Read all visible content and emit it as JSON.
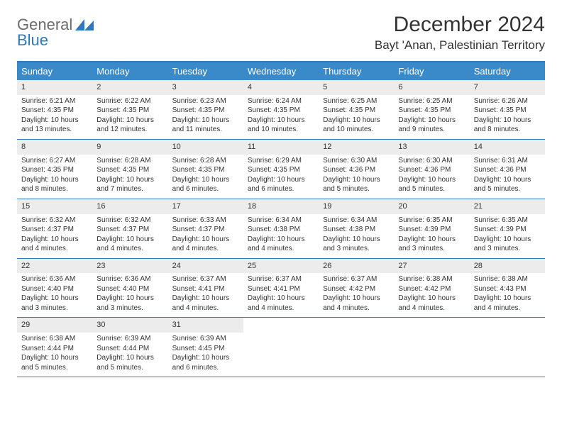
{
  "logo": {
    "part1": "General",
    "part2": "Blue"
  },
  "title": "December 2024",
  "location": "Bayt 'Anan, Palestinian Territory",
  "colors": {
    "header_bg": "#3a8ac9",
    "accent": "#2f78bd",
    "daynum_bg": "#ececec",
    "text": "#333333",
    "logo_gray": "#6b6b6b"
  },
  "weekdays": [
    "Sunday",
    "Monday",
    "Tuesday",
    "Wednesday",
    "Thursday",
    "Friday",
    "Saturday"
  ],
  "weeks": [
    [
      {
        "n": "1",
        "sr": "Sunrise: 6:21 AM",
        "ss": "Sunset: 4:35 PM",
        "d1": "Daylight: 10 hours",
        "d2": "and 13 minutes."
      },
      {
        "n": "2",
        "sr": "Sunrise: 6:22 AM",
        "ss": "Sunset: 4:35 PM",
        "d1": "Daylight: 10 hours",
        "d2": "and 12 minutes."
      },
      {
        "n": "3",
        "sr": "Sunrise: 6:23 AM",
        "ss": "Sunset: 4:35 PM",
        "d1": "Daylight: 10 hours",
        "d2": "and 11 minutes."
      },
      {
        "n": "4",
        "sr": "Sunrise: 6:24 AM",
        "ss": "Sunset: 4:35 PM",
        "d1": "Daylight: 10 hours",
        "d2": "and 10 minutes."
      },
      {
        "n": "5",
        "sr": "Sunrise: 6:25 AM",
        "ss": "Sunset: 4:35 PM",
        "d1": "Daylight: 10 hours",
        "d2": "and 10 minutes."
      },
      {
        "n": "6",
        "sr": "Sunrise: 6:25 AM",
        "ss": "Sunset: 4:35 PM",
        "d1": "Daylight: 10 hours",
        "d2": "and 9 minutes."
      },
      {
        "n": "7",
        "sr": "Sunrise: 6:26 AM",
        "ss": "Sunset: 4:35 PM",
        "d1": "Daylight: 10 hours",
        "d2": "and 8 minutes."
      }
    ],
    [
      {
        "n": "8",
        "sr": "Sunrise: 6:27 AM",
        "ss": "Sunset: 4:35 PM",
        "d1": "Daylight: 10 hours",
        "d2": "and 8 minutes."
      },
      {
        "n": "9",
        "sr": "Sunrise: 6:28 AM",
        "ss": "Sunset: 4:35 PM",
        "d1": "Daylight: 10 hours",
        "d2": "and 7 minutes."
      },
      {
        "n": "10",
        "sr": "Sunrise: 6:28 AM",
        "ss": "Sunset: 4:35 PM",
        "d1": "Daylight: 10 hours",
        "d2": "and 6 minutes."
      },
      {
        "n": "11",
        "sr": "Sunrise: 6:29 AM",
        "ss": "Sunset: 4:35 PM",
        "d1": "Daylight: 10 hours",
        "d2": "and 6 minutes."
      },
      {
        "n": "12",
        "sr": "Sunrise: 6:30 AM",
        "ss": "Sunset: 4:36 PM",
        "d1": "Daylight: 10 hours",
        "d2": "and 5 minutes."
      },
      {
        "n": "13",
        "sr": "Sunrise: 6:30 AM",
        "ss": "Sunset: 4:36 PM",
        "d1": "Daylight: 10 hours",
        "d2": "and 5 minutes."
      },
      {
        "n": "14",
        "sr": "Sunrise: 6:31 AM",
        "ss": "Sunset: 4:36 PM",
        "d1": "Daylight: 10 hours",
        "d2": "and 5 minutes."
      }
    ],
    [
      {
        "n": "15",
        "sr": "Sunrise: 6:32 AM",
        "ss": "Sunset: 4:37 PM",
        "d1": "Daylight: 10 hours",
        "d2": "and 4 minutes."
      },
      {
        "n": "16",
        "sr": "Sunrise: 6:32 AM",
        "ss": "Sunset: 4:37 PM",
        "d1": "Daylight: 10 hours",
        "d2": "and 4 minutes."
      },
      {
        "n": "17",
        "sr": "Sunrise: 6:33 AM",
        "ss": "Sunset: 4:37 PM",
        "d1": "Daylight: 10 hours",
        "d2": "and 4 minutes."
      },
      {
        "n": "18",
        "sr": "Sunrise: 6:34 AM",
        "ss": "Sunset: 4:38 PM",
        "d1": "Daylight: 10 hours",
        "d2": "and 4 minutes."
      },
      {
        "n": "19",
        "sr": "Sunrise: 6:34 AM",
        "ss": "Sunset: 4:38 PM",
        "d1": "Daylight: 10 hours",
        "d2": "and 3 minutes."
      },
      {
        "n": "20",
        "sr": "Sunrise: 6:35 AM",
        "ss": "Sunset: 4:39 PM",
        "d1": "Daylight: 10 hours",
        "d2": "and 3 minutes."
      },
      {
        "n": "21",
        "sr": "Sunrise: 6:35 AM",
        "ss": "Sunset: 4:39 PM",
        "d1": "Daylight: 10 hours",
        "d2": "and 3 minutes."
      }
    ],
    [
      {
        "n": "22",
        "sr": "Sunrise: 6:36 AM",
        "ss": "Sunset: 4:40 PM",
        "d1": "Daylight: 10 hours",
        "d2": "and 3 minutes."
      },
      {
        "n": "23",
        "sr": "Sunrise: 6:36 AM",
        "ss": "Sunset: 4:40 PM",
        "d1": "Daylight: 10 hours",
        "d2": "and 3 minutes."
      },
      {
        "n": "24",
        "sr": "Sunrise: 6:37 AM",
        "ss": "Sunset: 4:41 PM",
        "d1": "Daylight: 10 hours",
        "d2": "and 4 minutes."
      },
      {
        "n": "25",
        "sr": "Sunrise: 6:37 AM",
        "ss": "Sunset: 4:41 PM",
        "d1": "Daylight: 10 hours",
        "d2": "and 4 minutes."
      },
      {
        "n": "26",
        "sr": "Sunrise: 6:37 AM",
        "ss": "Sunset: 4:42 PM",
        "d1": "Daylight: 10 hours",
        "d2": "and 4 minutes."
      },
      {
        "n": "27",
        "sr": "Sunrise: 6:38 AM",
        "ss": "Sunset: 4:42 PM",
        "d1": "Daylight: 10 hours",
        "d2": "and 4 minutes."
      },
      {
        "n": "28",
        "sr": "Sunrise: 6:38 AM",
        "ss": "Sunset: 4:43 PM",
        "d1": "Daylight: 10 hours",
        "d2": "and 4 minutes."
      }
    ],
    [
      {
        "n": "29",
        "sr": "Sunrise: 6:38 AM",
        "ss": "Sunset: 4:44 PM",
        "d1": "Daylight: 10 hours",
        "d2": "and 5 minutes."
      },
      {
        "n": "30",
        "sr": "Sunrise: 6:39 AM",
        "ss": "Sunset: 4:44 PM",
        "d1": "Daylight: 10 hours",
        "d2": "and 5 minutes."
      },
      {
        "n": "31",
        "sr": "Sunrise: 6:39 AM",
        "ss": "Sunset: 4:45 PM",
        "d1": "Daylight: 10 hours",
        "d2": "and 6 minutes."
      },
      {
        "empty": true
      },
      {
        "empty": true
      },
      {
        "empty": true
      },
      {
        "empty": true
      }
    ]
  ]
}
